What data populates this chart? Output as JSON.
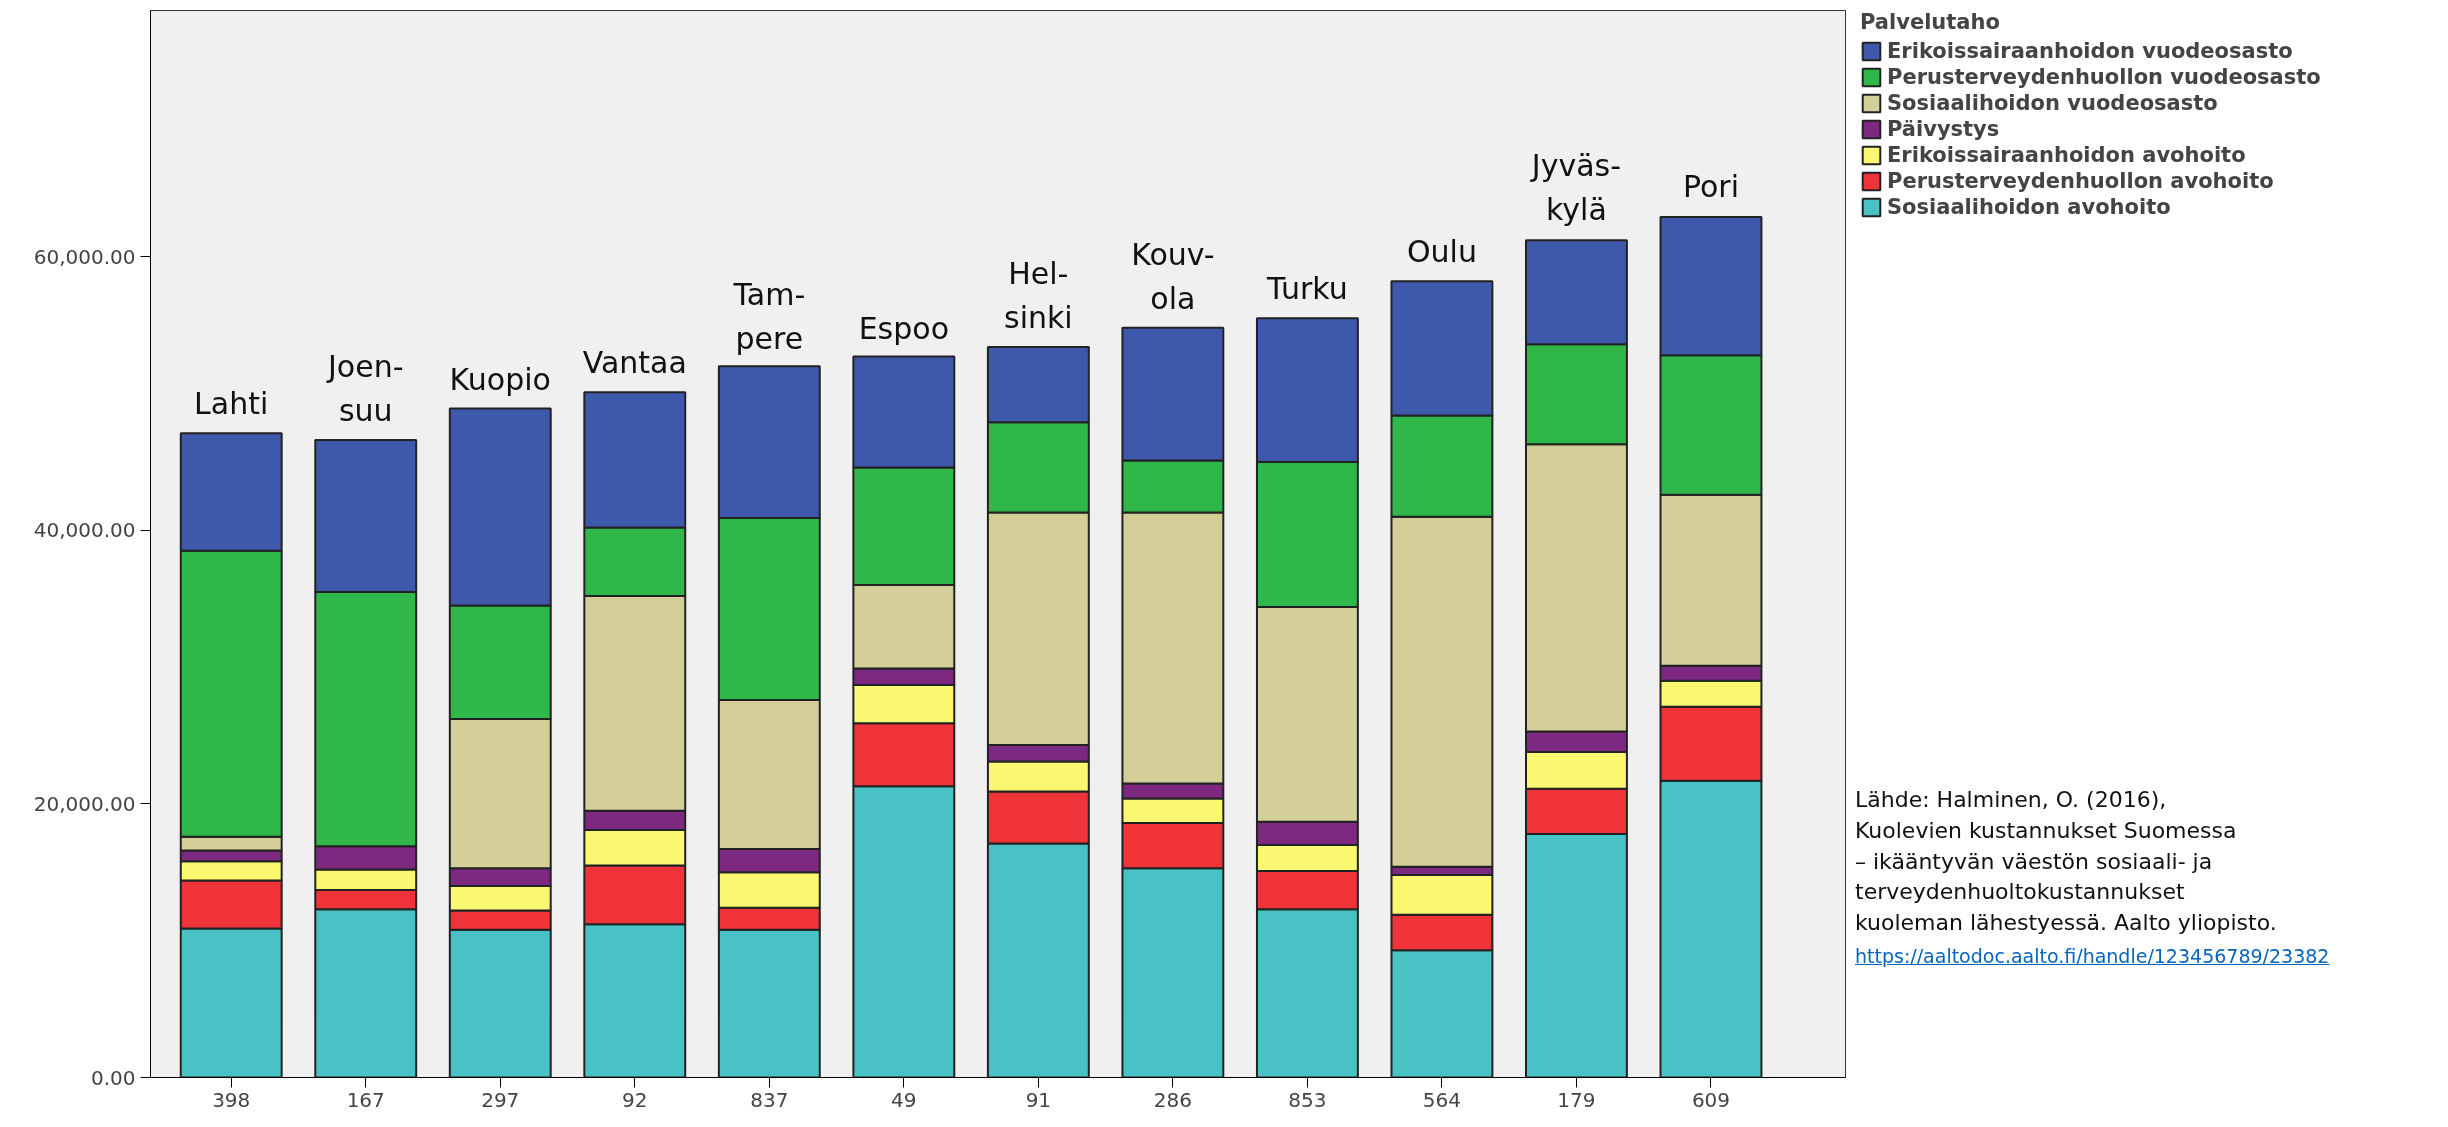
{
  "chart_data": {
    "type": "bar",
    "stacked": true,
    "legend_title": "Palvelutaho",
    "legend": "right",
    "categories": [
      "398",
      "167",
      "297",
      "92",
      "837",
      "49",
      "91",
      "286",
      "853",
      "564",
      "179",
      "609"
    ],
    "ylim": [
      0,
      78000
    ],
    "yticks": [
      {
        "value": 0,
        "label": "0.00"
      },
      {
        "value": 20000,
        "label": "20,000.00"
      },
      {
        "value": 40000,
        "label": "40,000.00"
      },
      {
        "value": 60000,
        "label": "60,000.00"
      }
    ],
    "grid": false,
    "series": [
      {
        "name": "Sosiaalihoidon avohoito",
        "color": "#48c2c5",
        "values": [
          10900,
          12300,
          10800,
          11200,
          10800,
          21300,
          17100,
          15300,
          12300,
          9300,
          17800,
          21700
        ]
      },
      {
        "name": "Perusterveydenhuollon avohoito",
        "color": "#ef3338",
        "values": [
          3500,
          1400,
          1400,
          4300,
          1600,
          4600,
          3800,
          3300,
          2800,
          2600,
          3300,
          5400
        ]
      },
      {
        "name": "Erikoissairaanhoidon avohoito",
        "color": "#faf871",
        "values": [
          1400,
          1500,
          1800,
          2600,
          2600,
          2800,
          2200,
          1800,
          1900,
          2900,
          2700,
          1900
        ]
      },
      {
        "name": "Päivystys",
        "color": "#7d2981",
        "values": [
          800,
          1700,
          1300,
          1400,
          1700,
          1200,
          1200,
          1100,
          1700,
          600,
          1500,
          1100
        ]
      },
      {
        "name": "Sosiaalihoidon vuodeosasto",
        "color": "#d4cf98",
        "values": [
          1000,
          null,
          10900,
          15700,
          10900,
          6100,
          17000,
          19800,
          15700,
          25600,
          21000,
          12500
        ]
      },
      {
        "name": "Perusterveydenhuollon vuodeosasto",
        "color": "#30b74a",
        "values": [
          20900,
          18600,
          8300,
          5000,
          13300,
          8600,
          6600,
          3800,
          10600,
          7400,
          7300,
          10200
        ]
      },
      {
        "name": "Erikoissairaanhoidon vuodeosasto",
        "color": "#3e58ac",
        "values": [
          8600,
          11100,
          14400,
          9900,
          11100,
          8100,
          5500,
          9700,
          10500,
          9800,
          7600,
          10100
        ]
      }
    ],
    "annotations": [
      {
        "text": "Lahti",
        "x": "398",
        "y": 47100
      },
      {
        "text": "Joen-\nsuu",
        "x": "167",
        "y": 46600
      },
      {
        "text": "Kuopio",
        "x": "297",
        "y": 48900
      },
      {
        "text": "Vantaa",
        "x": "92",
        "y": 50100
      },
      {
        "text": "Tam-\npere",
        "x": "837",
        "y": 51900
      },
      {
        "text": "Espoo",
        "x": "49",
        "y": 52600
      },
      {
        "text": "Hel-\nsinki",
        "x": "91",
        "y": 53400
      },
      {
        "text": "Kouv-\nola",
        "x": "286",
        "y": 54800
      },
      {
        "text": "Turku",
        "x": "853",
        "y": 55500
      },
      {
        "text": "Oulu",
        "x": "564",
        "y": 58200
      },
      {
        "text": "Jyväs-\nkylä",
        "x": "179",
        "y": 61300
      },
      {
        "text": "Pori",
        "x": "609",
        "y": 63000
      },
      "Lähde: Halminen, O. (2016),\nKuolevien kustannukset Suomessa\n – ikääntyvän väestön sosiaali- ja\nterveydenhuoltokustannukset\nkuoleman lähestyessä. Aalto yliopisto.",
      "https://aaltodoc.aalto.fi/handle/123456789/23382"
    ]
  }
}
